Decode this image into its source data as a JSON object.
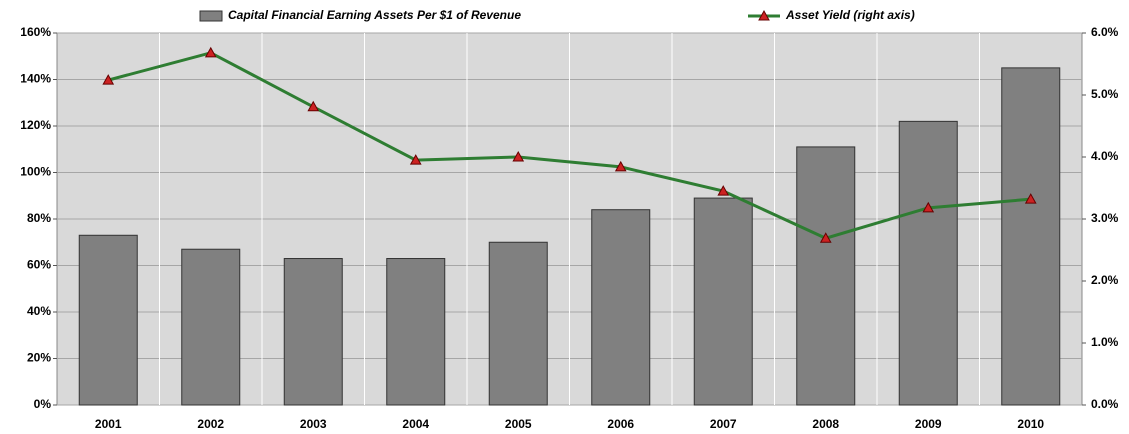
{
  "chart_data": {
    "type": "bar",
    "categories": [
      "2001",
      "2002",
      "2003",
      "2004",
      "2005",
      "2006",
      "2007",
      "2008",
      "2009",
      "2010"
    ],
    "series": [
      {
        "name": "Capital Financial Earning Assets Per $1 of Revenue",
        "type": "bar",
        "axis": "y",
        "color": "#808080",
        "values": [
          73,
          67,
          63,
          63,
          70,
          84,
          89,
          111,
          122,
          145
        ]
      },
      {
        "name": "Asset Yield (right axis)",
        "type": "line",
        "axis": "y2",
        "color": "#2e7d32",
        "marker_color": "#cc2222",
        "values": [
          5.24,
          5.68,
          4.81,
          3.95,
          4.0,
          3.84,
          3.45,
          2.69,
          3.18,
          3.32
        ]
      }
    ],
    "ylim": [
      0,
      160
    ],
    "yticks": [
      {
        "value": 0,
        "label": "0%"
      },
      {
        "value": 20,
        "label": "20%"
      },
      {
        "value": 40,
        "label": "40%"
      },
      {
        "value": 60,
        "label": "60%"
      },
      {
        "value": 80,
        "label": "80%"
      },
      {
        "value": 100,
        "label": "100%"
      },
      {
        "value": 120,
        "label": "120%"
      },
      {
        "value": 140,
        "label": "140%"
      },
      {
        "value": 160,
        "label": "160%"
      }
    ],
    "y2lim": [
      0,
      6
    ],
    "y2ticks": [
      {
        "value": 0,
        "label": "0.0%"
      },
      {
        "value": 1,
        "label": "1.0%"
      },
      {
        "value": 2,
        "label": "2.0%"
      },
      {
        "value": 3,
        "label": "3.0%"
      },
      {
        "value": 4,
        "label": "4.0%"
      },
      {
        "value": 5,
        "label": "5.0%"
      },
      {
        "value": 6,
        "label": "6.0%"
      }
    ],
    "grid": true,
    "legend": "top"
  }
}
